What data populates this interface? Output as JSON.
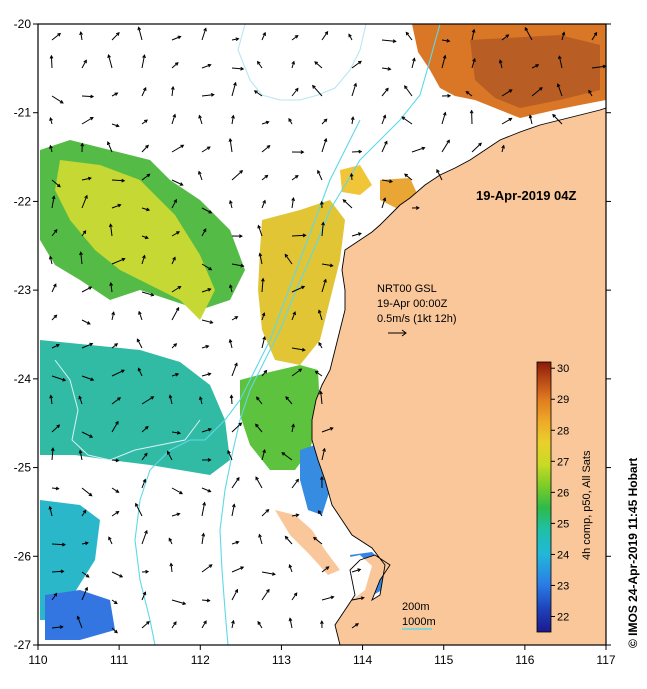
{
  "map": {
    "timestamp": "19-Apr-2019 04Z",
    "current_source": {
      "line1": "NRT00 GSL",
      "line2": "19-Apr 00:00Z",
      "line3": "0.5m/s (1kt 12h)"
    },
    "isobath_labels": {
      "shallow": "200m",
      "deep": "1000m"
    },
    "x_ticks": [
      "110",
      "111",
      "112",
      "113",
      "114",
      "115",
      "116",
      "117"
    ],
    "y_ticks": [
      "-20",
      "-21",
      "-22",
      "-23",
      "-24",
      "-25",
      "-26",
      "-27"
    ],
    "credit": "© IMOS 24-Apr-2019 11:45 Hobart",
    "extent": {
      "lon": [
        110,
        117
      ],
      "lat": [
        -27,
        -20
      ]
    },
    "colors": {
      "land": "#f9c79a",
      "isobath_200": "#5fd8e8",
      "isobath_1000": "#b8e6f0",
      "coast": "#000000",
      "arrow": "#000000"
    }
  },
  "colorbar": {
    "label": "4h comp, p50, All Sats",
    "min": 21.5,
    "max": 30.2,
    "ticks": [
      "22",
      "23",
      "24",
      "25",
      "26",
      "27",
      "28",
      "29",
      "30"
    ]
  }
}
